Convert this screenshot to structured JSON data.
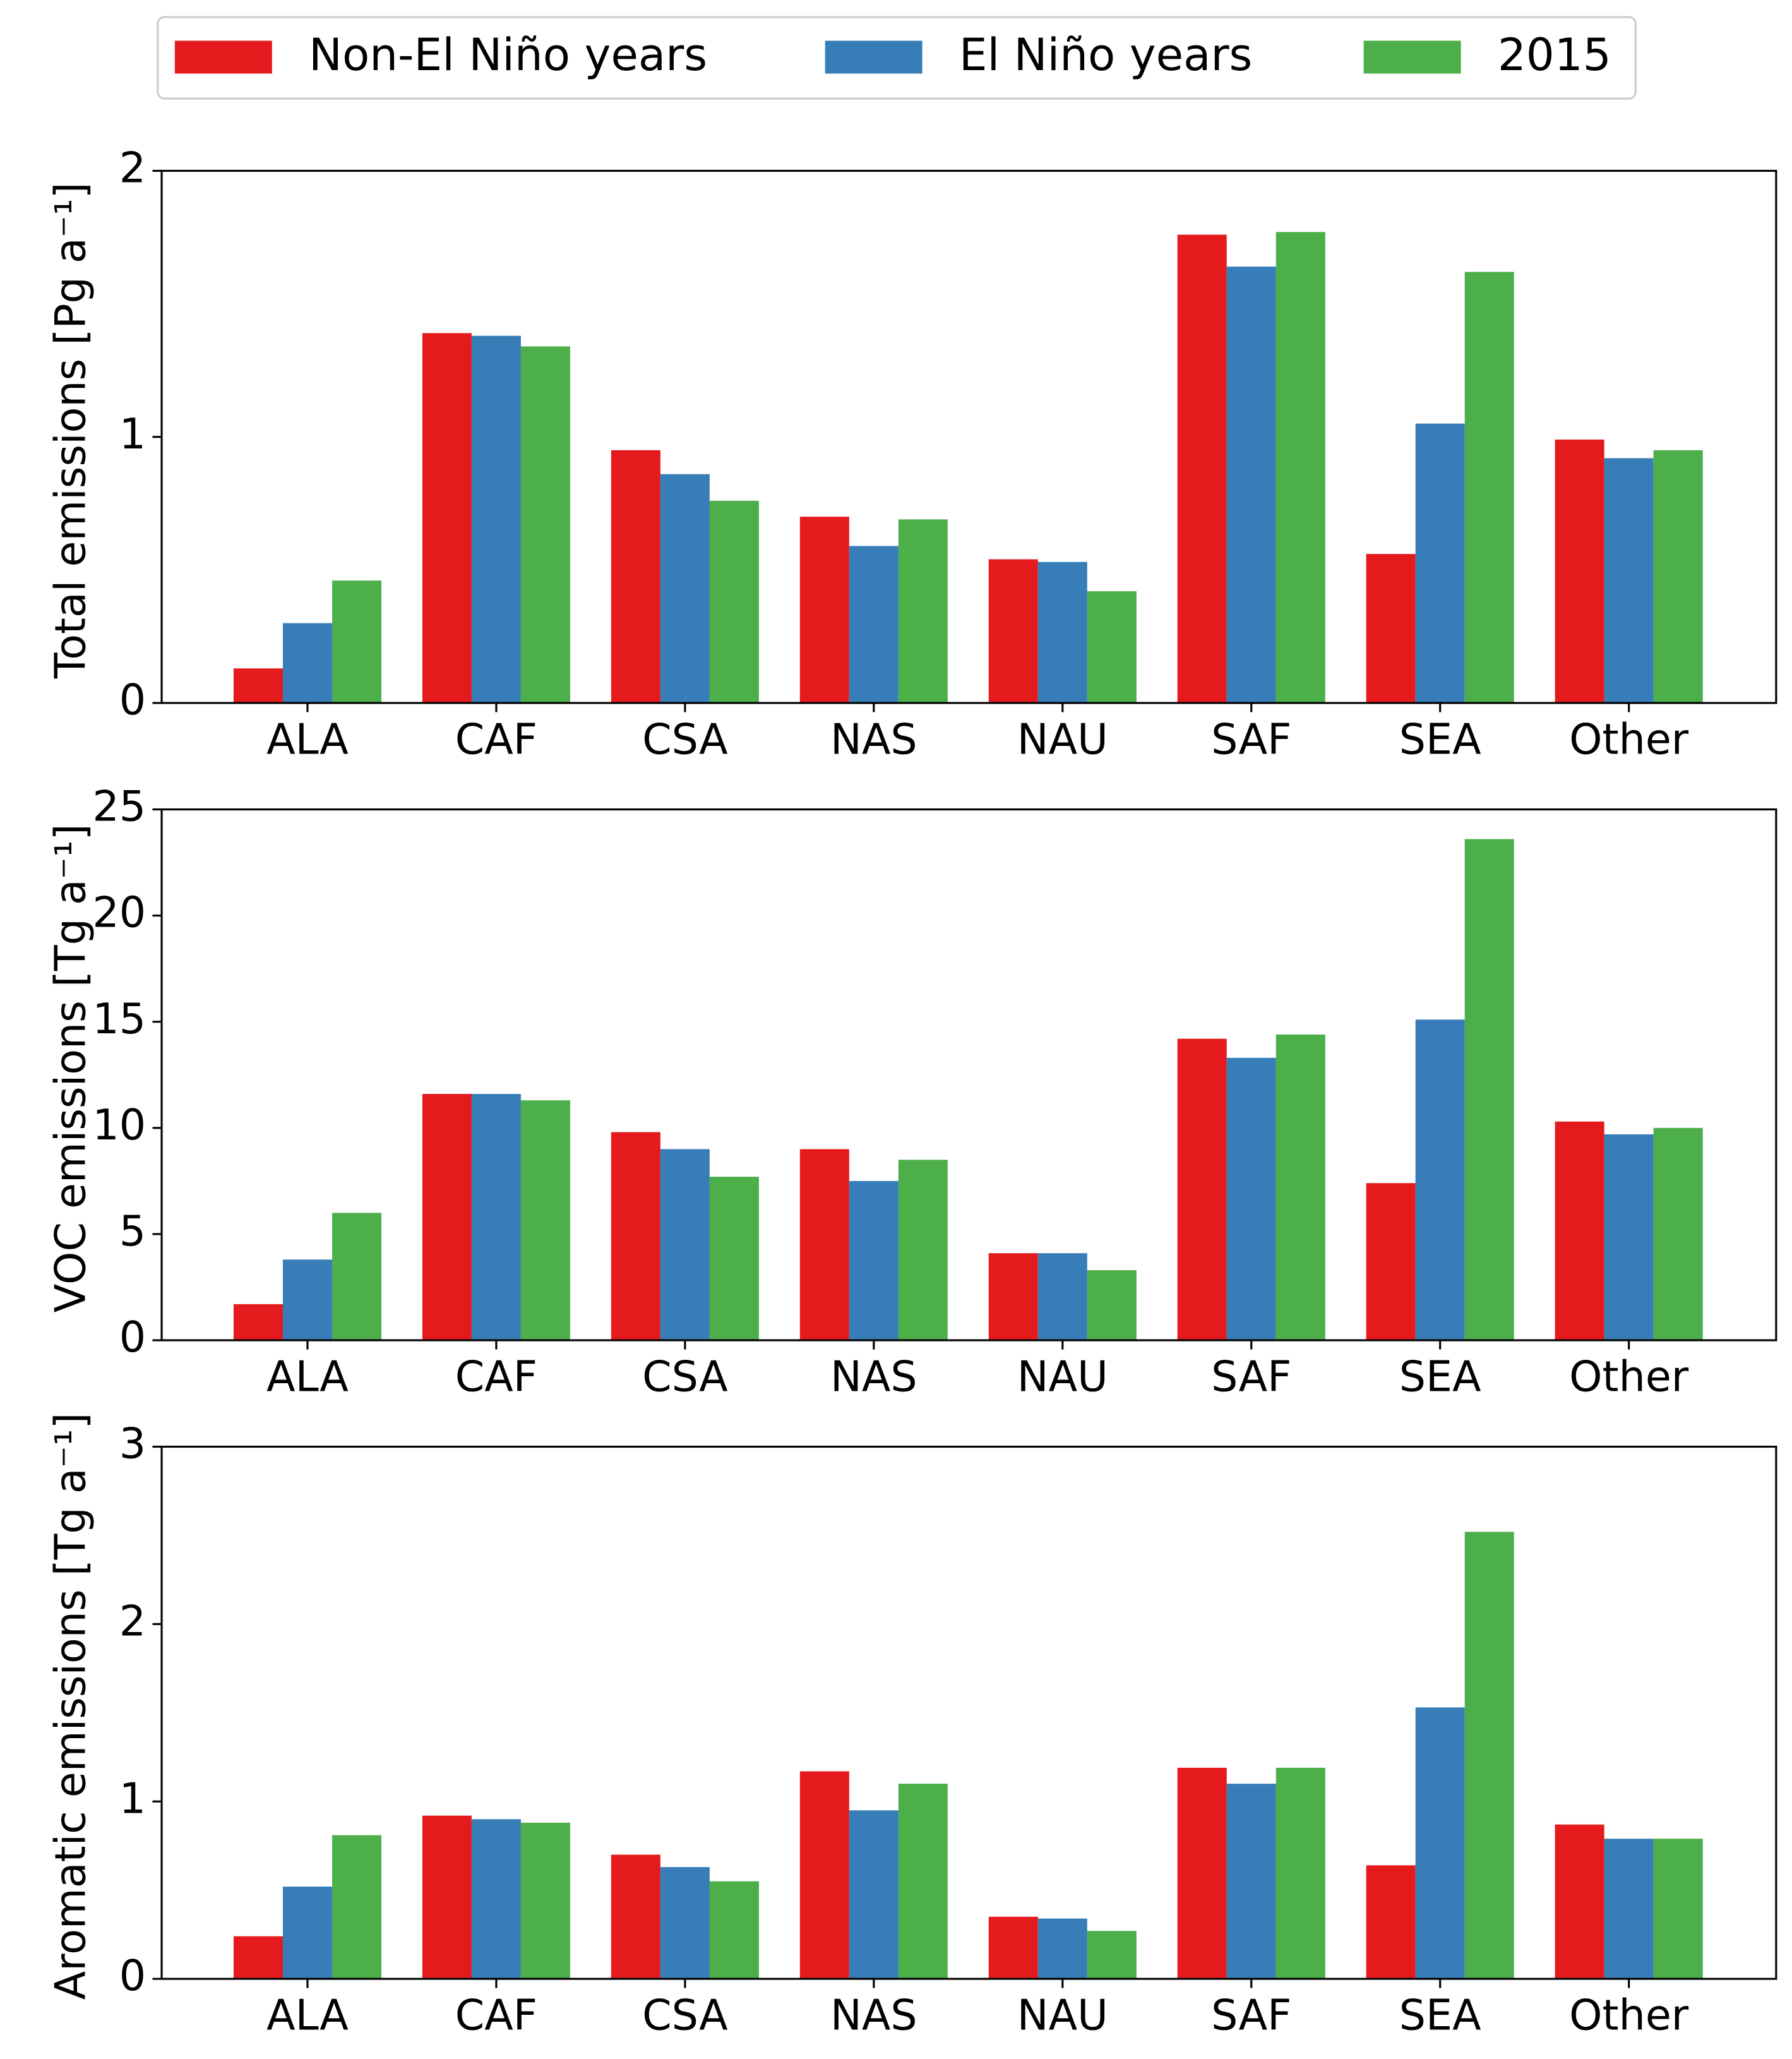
{
  "legend": [
    {
      "name": "Non-El Niño years",
      "color": "#e41a1c"
    },
    {
      "name": "El Niño years",
      "color": "#377eb8"
    },
    {
      "name": "2015",
      "color": "#4daf4a"
    }
  ],
  "chart_data": [
    {
      "type": "bar",
      "y_label": "Total emissions [Pg a⁻¹]",
      "categories": [
        "ALA",
        "CAF",
        "CSA",
        "NAS",
        "NAU",
        "SAF",
        "SEA",
        "Other"
      ],
      "series": [
        {
          "values": [
            0.13,
            1.39,
            0.95,
            0.7,
            0.54,
            1.76,
            0.56,
            0.99
          ]
        },
        {
          "values": [
            0.3,
            1.38,
            0.86,
            0.59,
            0.53,
            1.64,
            1.05,
            0.92
          ]
        },
        {
          "values": [
            0.46,
            1.34,
            0.76,
            0.69,
            0.42,
            1.77,
            1.62,
            0.95
          ]
        }
      ],
      "ylim": [
        0,
        2
      ],
      "yticks": [
        0,
        1,
        2
      ]
    },
    {
      "type": "bar",
      "y_label": "VOC emissions [Tg a⁻¹]",
      "categories": [
        "ALA",
        "CAF",
        "CSA",
        "NAS",
        "NAU",
        "SAF",
        "SEA",
        "Other"
      ],
      "series": [
        {
          "values": [
            1.7,
            11.6,
            9.8,
            9.0,
            4.1,
            14.2,
            7.4,
            10.3
          ]
        },
        {
          "values": [
            3.8,
            11.6,
            9.0,
            7.5,
            4.1,
            13.3,
            15.1,
            9.7
          ]
        },
        {
          "values": [
            6.0,
            11.3,
            7.7,
            8.5,
            3.3,
            14.4,
            23.6,
            10.0
          ]
        }
      ],
      "ylim": [
        0,
        25
      ],
      "yticks": [
        0,
        5,
        10,
        15,
        20,
        25
      ]
    },
    {
      "type": "bar",
      "y_label": "Aromatic emissions [Tg a⁻¹]",
      "categories": [
        "ALA",
        "CAF",
        "CSA",
        "NAS",
        "NAU",
        "SAF",
        "SEA",
        "Other"
      ],
      "series": [
        {
          "values": [
            0.24,
            0.92,
            0.7,
            1.17,
            0.35,
            1.19,
            0.64,
            0.87
          ]
        },
        {
          "values": [
            0.52,
            0.9,
            0.63,
            0.95,
            0.34,
            1.1,
            1.53,
            0.79
          ]
        },
        {
          "values": [
            0.81,
            0.88,
            0.55,
            1.1,
            0.27,
            1.19,
            2.52,
            0.79
          ]
        }
      ],
      "ylim": [
        0,
        3
      ],
      "yticks": [
        0,
        1,
        2,
        3
      ]
    }
  ]
}
